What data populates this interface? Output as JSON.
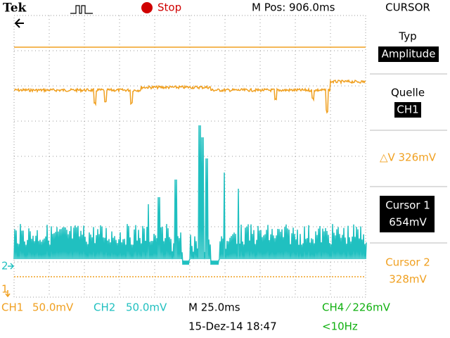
{
  "header": {
    "brand": "Tek",
    "state": "Stop",
    "position": "M Pos: 906.0ms",
    "menu_title": "CURSOR"
  },
  "menu": [
    {
      "label": "Typ",
      "value": "Amplitude"
    },
    {
      "label": "Quelle",
      "value": "CH1"
    },
    {
      "text": "△V 326mV"
    },
    {
      "label": "Cursor 1",
      "value": "654mV"
    },
    {
      "label": "Cursor 2",
      "value": "328mV"
    }
  ],
  "markers": {
    "ch2": "2",
    "ch1": "1"
  },
  "footer": {
    "ch1": "CH1",
    "ch1_scale": "50.0mV",
    "ch2": "CH2",
    "ch2_scale": "50.0mV",
    "timebase": "M 25.0ms",
    "trigger": "CH4 ⁄ 226mV",
    "date": "15-Dez-14 18:47",
    "freq": "<10Hz"
  }
}
